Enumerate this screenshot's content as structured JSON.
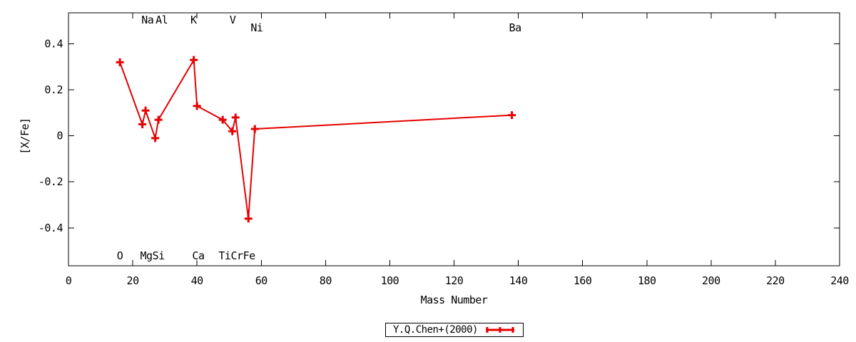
{
  "chart_data": {
    "type": "line",
    "title": "",
    "xlabel": "Mass Number",
    "ylabel": "[X/Fe]",
    "xlim": [
      0,
      240
    ],
    "ylim": [
      -0.565,
      0.535
    ],
    "xticks": [
      0,
      20,
      40,
      60,
      80,
      100,
      120,
      140,
      160,
      180,
      200,
      220,
      240
    ],
    "xtick_labels": [
      "0",
      "20",
      "40",
      "60",
      "80",
      "100",
      "120",
      "140",
      "160",
      "180",
      "200",
      "220",
      "240"
    ],
    "yticks": [
      0.4,
      0.2,
      0,
      -0.2,
      -0.4
    ],
    "ytick_labels": [
      "0.4",
      "0.2",
      "0",
      "-0.2",
      "-0.4"
    ],
    "grid": false,
    "axis_color": "#000000",
    "series": [
      {
        "name": "Y.Q.Chen+(2000)",
        "color": "#e60000",
        "marker": "plus",
        "points": [
          {
            "element": "O",
            "mass": 16,
            "value": 0.32
          },
          {
            "element": "Na",
            "mass": 23,
            "value": 0.05
          },
          {
            "element": "Mg",
            "mass": 24,
            "value": 0.11
          },
          {
            "element": "Al",
            "mass": 27,
            "value": -0.01
          },
          {
            "element": "Si",
            "mass": 28,
            "value": 0.07
          },
          {
            "element": "K",
            "mass": 39,
            "value": 0.33
          },
          {
            "element": "Ca",
            "mass": 40,
            "value": 0.13
          },
          {
            "element": "Ti",
            "mass": 48,
            "value": 0.07
          },
          {
            "element": "V",
            "mass": 51,
            "value": 0.02
          },
          {
            "element": "Cr",
            "mass": 52,
            "value": 0.08
          },
          {
            "element": "Fe",
            "mass": 56,
            "value": -0.36
          },
          {
            "element": "Ni",
            "mass": 58,
            "value": 0.03
          },
          {
            "element": "Ba",
            "mass": 138,
            "value": 0.09
          }
        ]
      }
    ],
    "annotations": [
      {
        "text": "Na",
        "mass": 24.6,
        "row": "top"
      },
      {
        "text": "Al",
        "mass": 29.0,
        "row": "top"
      },
      {
        "text": "K",
        "mass": 38.9,
        "row": "top"
      },
      {
        "text": "V",
        "mass": 51.1,
        "row": "top"
      },
      {
        "text": "Ni",
        "mass": 58.6,
        "row": "top2"
      },
      {
        "text": "Ba",
        "mass": 139.0,
        "row": "top2"
      },
      {
        "text": "O",
        "mass": 16.0,
        "row": "bottom"
      },
      {
        "text": "Mg",
        "mass": 24.2,
        "row": "bottom"
      },
      {
        "text": "Si",
        "mass": 28.0,
        "row": "bottom"
      },
      {
        "text": "Ca",
        "mass": 40.4,
        "row": "bottom"
      },
      {
        "text": "Ti",
        "mass": 48.6,
        "row": "bottom"
      },
      {
        "text": "Cr",
        "mass": 52.4,
        "row": "bottom"
      },
      {
        "text": "Fe",
        "mass": 56.2,
        "row": "bottom"
      }
    ],
    "legend": {
      "position": "bottom-outside-center",
      "entries": [
        {
          "label": "Y.Q.Chen+(2000)",
          "color": "#e60000",
          "marker": "plus"
        }
      ]
    }
  }
}
